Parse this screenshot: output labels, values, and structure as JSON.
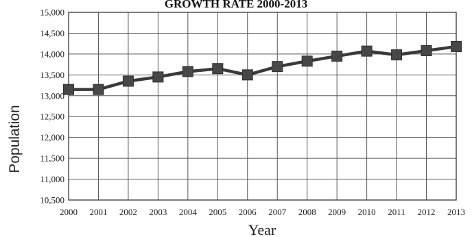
{
  "chart_data": {
    "type": "line",
    "title": "GROWTH RATE 2000-2013",
    "xlabel": "Year",
    "ylabel": "Population",
    "categories": [
      "2000",
      "2001",
      "2002",
      "2003",
      "2004",
      "2005",
      "2006",
      "2007",
      "2008",
      "2009",
      "2010",
      "2011",
      "2012",
      "2013"
    ],
    "series": [
      {
        "values": [
          13150,
          13150,
          13350,
          13450,
          13580,
          13650,
          13500,
          13700,
          13830,
          13950,
          14070,
          13980,
          14080,
          14180
        ]
      }
    ],
    "ylim": [
      10500,
      15000
    ],
    "yticks": [
      10500,
      11000,
      11500,
      12000,
      12500,
      13000,
      13500,
      14000,
      14500,
      15000
    ],
    "ytick_labels": [
      "10,500",
      "11,000",
      "11,500",
      "12,000",
      "12,500",
      "13,000",
      "13,500",
      "14,000",
      "14,500",
      "15,000"
    ],
    "grid": true,
    "marker": "square",
    "colors": {
      "line": "#3a3a3a",
      "marker": "#474747",
      "grid": "#555555"
    }
  }
}
